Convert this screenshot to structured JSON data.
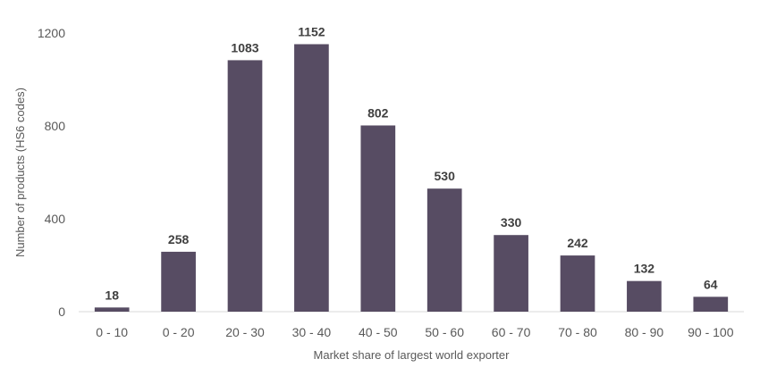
{
  "chart_data": {
    "type": "bar",
    "title": "",
    "xlabel": "Market share of largest world exporter",
    "ylabel": "Number of products (HS6 codes)",
    "categories": [
      "0 - 10",
      "0 - 20",
      "20 - 30",
      "30 - 40",
      "40 - 50",
      "50 - 60",
      "60 - 70",
      "70 - 80",
      "80 - 90",
      "90 - 100"
    ],
    "values": [
      18,
      258,
      1083,
      1152,
      802,
      530,
      330,
      242,
      132,
      64
    ],
    "ylim": [
      0,
      1200
    ],
    "yticks": [
      0,
      400,
      800,
      1200
    ],
    "grid": false,
    "legend": "none",
    "bar_color": "#574c63"
  }
}
